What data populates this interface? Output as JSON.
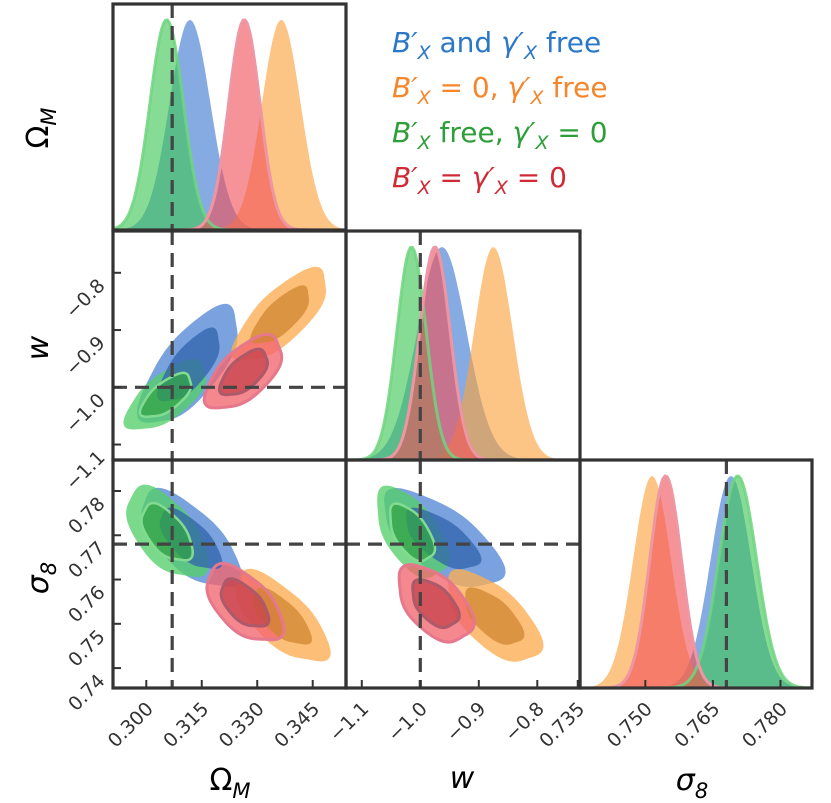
{
  "chart_data": {
    "type": "triangle-corner",
    "title": "",
    "parameters": [
      {
        "id": "om",
        "label": "Ω",
        "sub": "M",
        "range": [
          0.291,
          0.354
        ],
        "ticks": [
          "0.300",
          "0.315",
          "0.330",
          "0.345"
        ]
      },
      {
        "id": "w",
        "label": "w",
        "sub": "",
        "range": [
          -1.127,
          -0.727
        ],
        "ticks": [
          "−1.1",
          "−1.0",
          "−0.9",
          "−0.8"
        ]
      },
      {
        "id": "s8",
        "label": "σ",
        "sub": "8",
        "range": [
          0.7355,
          0.787
        ],
        "ticks": [
          "0.735",
          "0.750",
          "0.765",
          "0.780"
        ]
      }
    ],
    "y_tick_labels": {
      "w": [
        "−0.8",
        "−0.9",
        "−1.0",
        "−1.1"
      ],
      "s8": [
        "0.78",
        "0.77",
        "0.76",
        "0.75",
        "0.74"
      ]
    },
    "truth": {
      "om": 0.307,
      "w": -1.0,
      "s8": 0.768
    },
    "series": [
      {
        "name": "B'X and γ'X free",
        "color": "#3b78d0",
        "mean": {
          "om": 0.3118,
          "w": -0.963,
          "s8": 0.769
        },
        "sd": {
          "om": 0.0055,
          "w": 0.042,
          "s8": 0.0045
        },
        "corr": {
          "om_w": 0.7,
          "om_s8": -0.65,
          "w_s8": -0.65
        },
        "style": "filled"
      },
      {
        "name": "B'X = 0, γ'X free",
        "color": "#fca23a",
        "mean": {
          "om": 0.3365,
          "w": -0.875,
          "s8": 0.7515
        },
        "sd": {
          "om": 0.0052,
          "w": 0.033,
          "s8": 0.0042
        },
        "corr": {
          "om_w": 0.72,
          "om_s8": -0.68,
          "w_s8": -0.62
        },
        "style": "filled"
      },
      {
        "name": "B'X free, γ'X = 0",
        "color": "#3ec754",
        "mean": {
          "om": 0.3055,
          "w": -1.015,
          "s8": 0.7705
        },
        "sd": {
          "om": 0.0045,
          "w": 0.025,
          "s8": 0.0042
        },
        "corr": {
          "om_w": 0.65,
          "om_s8": -0.55,
          "w_s8": -0.55
        },
        "style": "filled"
      },
      {
        "name": "B'X = γ'X = 0",
        "color": "#f0505a",
        "mean": {
          "om": 0.3265,
          "w": -0.975,
          "s8": 0.7545
        },
        "sd": {
          "om": 0.0042,
          "w": 0.026,
          "s8": 0.0035
        },
        "corr": {
          "om_w": 0.6,
          "om_s8": -0.55,
          "w_s8": -0.5
        },
        "style": "filled"
      },
      {
        "name": "B'X = γ'X = 0 (outline)",
        "color": "#e5788c",
        "mean": {
          "om": 0.3265,
          "w": -0.975,
          "s8": 0.7545
        },
        "sd": {
          "om": 0.0042,
          "w": 0.026,
          "s8": 0.0035
        },
        "corr": {
          "om_w": 0.6,
          "om_s8": -0.55,
          "w_s8": -0.5
        },
        "style": "outline"
      }
    ],
    "legend": {
      "position": "top-right",
      "entries": [
        {
          "base": "B′",
          "sub": "X",
          "text": " and γ′",
          "sub2": "X",
          "tail": " free",
          "color": "#2b77c8"
        },
        {
          "base": "B′",
          "sub": "X",
          "text": " = 0, γ′",
          "sub2": "X",
          "tail": " free",
          "color": "#f6862a"
        },
        {
          "base": "B′",
          "sub": "X",
          "text": " free, γ′",
          "sub2": "X",
          "tail": " = 0",
          "color": "#2e9e3a"
        },
        {
          "base": "B′",
          "sub": "X",
          "text": " = γ′",
          "sub2": "X",
          "tail": " = 0",
          "color": "#d02a35"
        }
      ]
    }
  }
}
